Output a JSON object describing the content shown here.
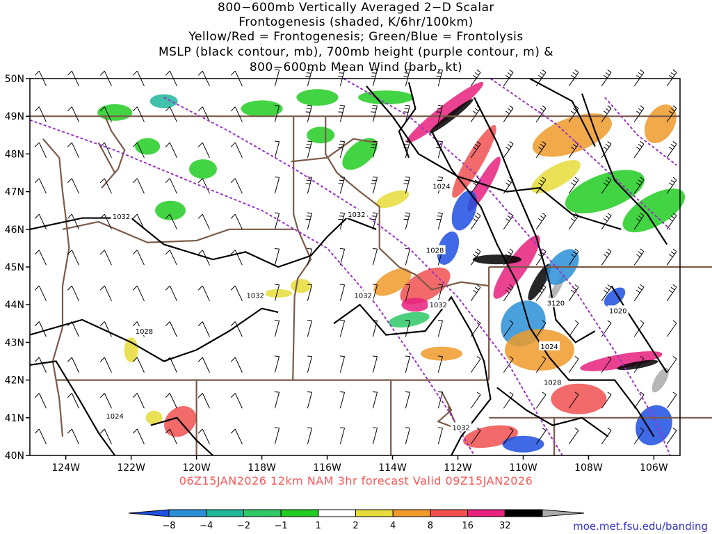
{
  "title_lines": [
    "800−600mb Vertically Averaged 2−D Scalar",
    "Frontogenesis (shaded, K/6hr/100km)",
    "Yellow/Red = Frontogenesis;  Green/Blue = Frontolysis",
    "MSLP (black contour, mb), 700mb height (purple contour, m) &",
    "800−600mb Mean Wind (barb, kt)"
  ],
  "valid_text": "06Z15JAN2026  12km  NAM  3hr forecast  Valid  09Z15JAN2026",
  "credit": "moe.met.fsu.edu/banding",
  "lat_labels": [
    "50N",
    "49N",
    "48N",
    "47N",
    "46N",
    "45N",
    "44N",
    "43N",
    "42N",
    "41N",
    "40N"
  ],
  "lon_labels": [
    "124W",
    "122W",
    "120W",
    "118W",
    "116W",
    "114W",
    "112W",
    "110W",
    "108W",
    "106W"
  ],
  "contour_labels": [
    {
      "text": "1032",
      "lon": -122.3,
      "lat": 46.35
    },
    {
      "text": "1032",
      "lon": -115.1,
      "lat": 46.4
    },
    {
      "text": "1024",
      "lon": -112.5,
      "lat": 47.15
    },
    {
      "text": "1028",
      "lon": -112.7,
      "lat": 45.45
    },
    {
      "text": "1032",
      "lon": -118.2,
      "lat": 44.25
    },
    {
      "text": "1032",
      "lon": -114.9,
      "lat": 44.25
    },
    {
      "text": "1032",
      "lon": -112.6,
      "lat": 44.0
    },
    {
      "text": "3120",
      "lon": -109.0,
      "lat": 44.05
    },
    {
      "text": "1020",
      "lon": -107.1,
      "lat": 43.85
    },
    {
      "text": "1028",
      "lon": -121.6,
      "lat": 43.3
    },
    {
      "text": "1024",
      "lon": -109.2,
      "lat": 42.9
    },
    {
      "text": "1028",
      "lon": -109.1,
      "lat": 41.95
    },
    {
      "text": "1024",
      "lon": -122.5,
      "lat": 41.05
    },
    {
      "text": "1032",
      "lon": -111.9,
      "lat": 40.75
    }
  ],
  "colorbar": {
    "ticks": [
      "−8",
      "−4",
      "−2",
      "−1",
      "1",
      "2",
      "4",
      "8",
      "16",
      "32"
    ],
    "colors": [
      "#1f4fe0",
      "#2a8fd6",
      "#1fb69a",
      "#2ec866",
      "#22cc22",
      "#ffffff",
      "#e6dc3a",
      "#ef9a2a",
      "#f05050",
      "#e8207e",
      "#000000",
      "#aaaaaa"
    ]
  },
  "colors": {
    "mslp": "#000000",
    "height700": "#9b30c8",
    "borders": "#7a5a48",
    "valid_text": "#ff5555",
    "credit": "#3333cc"
  }
}
